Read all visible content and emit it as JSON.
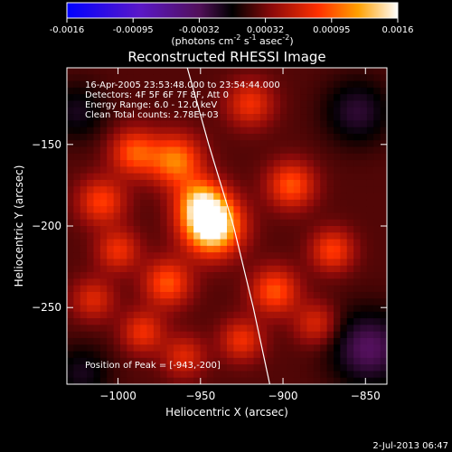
{
  "colorbar": {
    "ticks": [
      "-0.0016",
      "-0.00095",
      "-0.00032",
      "0.00032",
      "0.00095",
      "0.0016"
    ],
    "units_main": "(photons cm",
    "units_sup1": "-2",
    "units_mid1": " s",
    "units_sup2": "-1",
    "units_mid2": " asec",
    "units_sup3": "-2",
    "units_end": ")"
  },
  "image": {
    "title": "Reconstructed RHESSI Image",
    "info": [
      "16-Apr-2005 23:53:48.000 to 23:54:44.000",
      "Detectors: 4F 5F 6F 7F 8F, Att 0",
      "Energy Range: 6.0 - 12.0 keV",
      "Clean     Total counts: 2.78E+03"
    ],
    "peak": "Position of Peak = [-943,-200]",
    "timestamp": "2-Jul-2013 06:47"
  },
  "chart_data": {
    "type": "heatmap",
    "title": "Reconstructed RHESSI Image",
    "xlabel": "Heliocentric X (arcsec)",
    "ylabel": "Heliocentric Y (arcsec)",
    "xlim": [
      -1031,
      -837
    ],
    "ylim": [
      -297,
      -103
    ],
    "xticks": [
      -1000,
      -950,
      -900,
      -850
    ],
    "yticks": [
      -150,
      -200,
      -250
    ],
    "xtick_labels": [
      "−1000",
      "−950",
      "−900",
      "−850"
    ],
    "ytick_labels": [
      "−150",
      "−200",
      "−250"
    ],
    "colorbar_range": [
      -0.0016,
      0.0016
    ],
    "peak": {
      "x": -943,
      "y": -200,
      "value": 0.0016
    },
    "limb_points": [
      [
        -958,
        -103
      ],
      [
        -945,
        -150
      ],
      [
        -930,
        -200
      ],
      [
        -918,
        -250
      ],
      [
        -908,
        -297
      ]
    ],
    "sources": [
      {
        "x": -943,
        "y": -200,
        "amp": 1.0,
        "sigma": 12
      },
      {
        "x": -950,
        "y": -185,
        "amp": 0.55,
        "sigma": 10
      },
      {
        "x": -965,
        "y": -160,
        "amp": 0.55,
        "sigma": 11
      },
      {
        "x": -990,
        "y": -155,
        "amp": 0.45,
        "sigma": 10
      },
      {
        "x": -1010,
        "y": -185,
        "amp": 0.4,
        "sigma": 10
      },
      {
        "x": -1000,
        "y": -215,
        "amp": 0.35,
        "sigma": 9
      },
      {
        "x": -970,
        "y": -235,
        "amp": 0.45,
        "sigma": 10
      },
      {
        "x": -985,
        "y": -265,
        "amp": 0.35,
        "sigma": 9
      },
      {
        "x": -960,
        "y": -280,
        "amp": 0.3,
        "sigma": 9
      },
      {
        "x": -925,
        "y": -270,
        "amp": 0.35,
        "sigma": 9
      },
      {
        "x": -905,
        "y": -240,
        "amp": 0.45,
        "sigma": 10
      },
      {
        "x": -895,
        "y": -175,
        "amp": 0.45,
        "sigma": 10
      },
      {
        "x": -870,
        "y": -215,
        "amp": 0.4,
        "sigma": 9
      },
      {
        "x": -880,
        "y": -260,
        "amp": 0.3,
        "sigma": 9
      },
      {
        "x": -920,
        "y": -125,
        "amp": 0.35,
        "sigma": 10
      },
      {
        "x": -1015,
        "y": -245,
        "amp": 0.3,
        "sigma": 9
      },
      {
        "x": -855,
        "y": -130,
        "amp": -0.25,
        "sigma": 14
      },
      {
        "x": -848,
        "y": -275,
        "amp": -0.35,
        "sigma": 16
      },
      {
        "x": -1025,
        "y": -130,
        "amp": -0.2,
        "sigma": 12
      },
      {
        "x": -1022,
        "y": -290,
        "amp": -0.2,
        "sigma": 12
      }
    ]
  }
}
